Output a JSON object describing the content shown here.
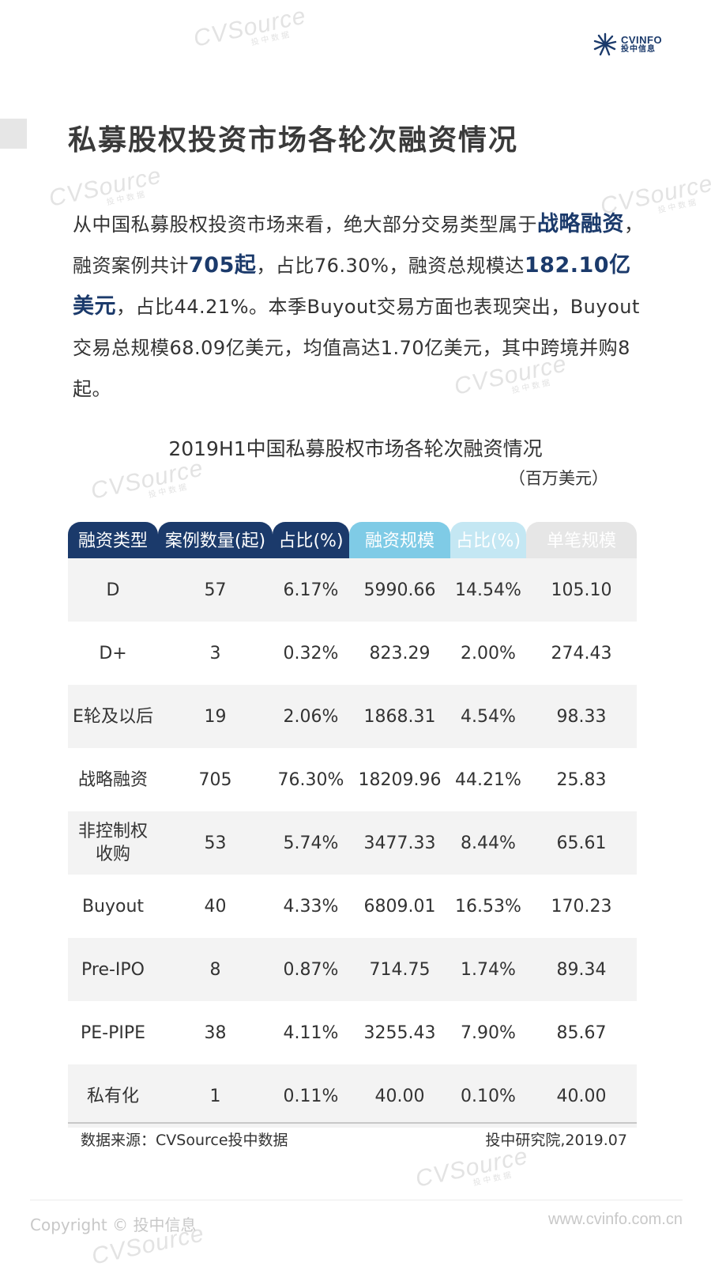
{
  "watermark": {
    "brand": "CVSource",
    "subtitle": "投中数据"
  },
  "logo": {
    "en": "CVINFO",
    "cn": "投中信息"
  },
  "page_title": "私募股权投资市场各轮次融资情况",
  "intro": {
    "p1": "从中国私募股权投资市场来看，绝大部分交易类型属于",
    "h1": "战略融资",
    "p2": "，融资案例共计",
    "h2": "705起",
    "p3": "，占比76.30%，融资总规模达",
    "h3": "182.10亿美元",
    "p4": "，占比44.21%。本季Buyout交易方面也表现突出，Buyout交易总规模68.09亿美元，均值高达1.70亿美元，其中跨境并购8起。"
  },
  "table": {
    "title": "2019H1中国私募股权市场各轮次融资情况",
    "unit": "（百万美元）",
    "header_colors": [
      "#1b3a6b",
      "#1b3a6b",
      "#1b3a6b",
      "#7fcbe6",
      "#c4e7f3",
      "#e6e6e6"
    ],
    "headers": [
      "融资类型",
      "案例数量(起)",
      "占比(%)",
      "融资规模",
      "占比(%)",
      "单笔规模"
    ],
    "rows": [
      [
        "D",
        "57",
        "6.17%",
        "5990.66",
        "14.54%",
        "105.10"
      ],
      [
        "D+",
        "3",
        "0.32%",
        "823.29",
        "2.00%",
        "274.43"
      ],
      [
        "E轮及以后",
        "19",
        "2.06%",
        "1868.31",
        "4.54%",
        "98.33"
      ],
      [
        "战略融资",
        "705",
        "76.30%",
        "18209.96",
        "44.21%",
        "25.83"
      ],
      [
        "非控制权\n收购",
        "53",
        "5.74%",
        "3477.33",
        "8.44%",
        "65.61"
      ],
      [
        "Buyout",
        "40",
        "4.33%",
        "6809.01",
        "16.53%",
        "170.23"
      ],
      [
        "Pre-IPO",
        "8",
        "0.87%",
        "714.75",
        "1.74%",
        "89.34"
      ],
      [
        "PE-PIPE",
        "38",
        "4.11%",
        "3255.43",
        "7.90%",
        "85.67"
      ],
      [
        "私有化",
        "1",
        "0.11%",
        "40.00",
        "0.10%",
        "40.00"
      ]
    ]
  },
  "source": "数据来源：CVSource投中数据",
  "pubdate": "投中研究院,2019.07",
  "footer": {
    "copyright": "Copyright © 投中信息",
    "website": "www.cvinfo.com.cn"
  }
}
